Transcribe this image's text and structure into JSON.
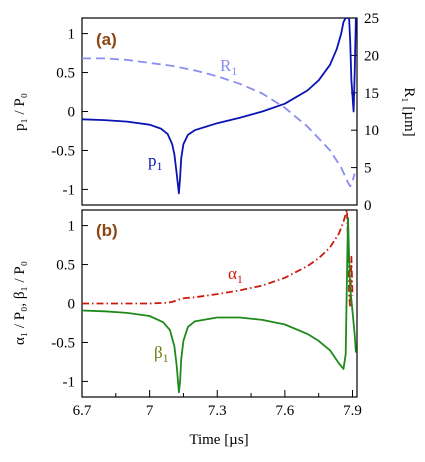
{
  "chart_data": [
    {
      "type": "line",
      "panel_label": "(a)",
      "ylabel_left": "p₁ / P₀",
      "ylabel_right": "R₁ [µm]",
      "ylim_left": [
        -1.2,
        1.2
      ],
      "ylim_right": [
        0,
        25
      ],
      "y_ticks_left": [
        "1",
        "0.5",
        "0",
        "-0.5",
        "-1"
      ],
      "y_tick_values_left": [
        1,
        0.5,
        0,
        -0.5,
        -1
      ],
      "y_ticks_right": [
        "25",
        "20",
        "15",
        "10",
        "5",
        "0"
      ],
      "y_tick_values_right": [
        25,
        20,
        15,
        10,
        5,
        0
      ],
      "series": [
        {
          "name": "p₁",
          "axis": "left",
          "color": "#0a14b4",
          "style": "solid",
          "points": [
            [
              6.7,
              -0.1
            ],
            [
              6.8,
              -0.11
            ],
            [
              6.9,
              -0.13
            ],
            [
              7.0,
              -0.17
            ],
            [
              7.05,
              -0.22
            ],
            [
              7.08,
              -0.29
            ],
            [
              7.1,
              -0.42
            ],
            [
              7.11,
              -0.55
            ],
            [
              7.12,
              -0.8
            ],
            [
              7.13,
              -1.05
            ],
            [
              7.135,
              -0.85
            ],
            [
              7.14,
              -0.6
            ],
            [
              7.15,
              -0.42
            ],
            [
              7.17,
              -0.3
            ],
            [
              7.2,
              -0.24
            ],
            [
              7.3,
              -0.15
            ],
            [
              7.4,
              -0.08
            ],
            [
              7.5,
              0.0
            ],
            [
              7.6,
              0.1
            ],
            [
              7.7,
              0.27
            ],
            [
              7.75,
              0.4
            ],
            [
              7.8,
              0.6
            ],
            [
              7.83,
              0.8
            ],
            [
              7.85,
              1.0
            ],
            [
              7.86,
              1.15
            ],
            [
              7.87,
              1.2
            ],
            [
              7.885,
              1.2
            ],
            [
              7.89,
              0.9
            ],
            [
              7.895,
              0.4
            ],
            [
              7.905,
              0.0
            ],
            [
              7.91,
              0.5
            ],
            [
              7.915,
              1.2
            ]
          ]
        },
        {
          "name": "R₁",
          "axis": "right",
          "color": "#8a8ef0",
          "style": "dashed",
          "points": [
            [
              6.7,
              19.6
            ],
            [
              6.8,
              19.6
            ],
            [
              6.9,
              19.4
            ],
            [
              7.0,
              19.0
            ],
            [
              7.1,
              18.6
            ],
            [
              7.2,
              18.0
            ],
            [
              7.3,
              17.2
            ],
            [
              7.4,
              16.2
            ],
            [
              7.5,
              14.9
            ],
            [
              7.6,
              13.0
            ],
            [
              7.7,
              10.5
            ],
            [
              7.8,
              7.3
            ],
            [
              7.85,
              5.0
            ],
            [
              7.88,
              3.0
            ],
            [
              7.89,
              2.5
            ],
            [
              7.9,
              3.2
            ],
            [
              7.91,
              4.2
            ]
          ]
        }
      ],
      "annotations": [
        "R₁",
        "p₁"
      ]
    },
    {
      "type": "line",
      "panel_label": "(b)",
      "ylabel_left": "α₁ / P₀,  β₁ / P₀",
      "xlabel": "Time  [µs]",
      "ylim": [
        -1.2,
        1.2
      ],
      "xlim": [
        6.7,
        7.92
      ],
      "y_ticks": [
        "1",
        "0.5",
        "0",
        "-0.5",
        "-1"
      ],
      "y_tick_values": [
        1,
        0.5,
        0,
        -0.5,
        -1
      ],
      "x_ticks": [
        "6.7",
        "7",
        "7.3",
        "7.6",
        "7.9"
      ],
      "x_tick_values": [
        6.7,
        7.0,
        7.3,
        7.6,
        7.9
      ],
      "x_minor_ticks": [
        6.85,
        7.15,
        7.45,
        7.75
      ],
      "series": [
        {
          "name": "α₁",
          "color": "#cc1a0d",
          "style": "dashdot",
          "points": [
            [
              6.7,
              0.0
            ],
            [
              6.9,
              0.0
            ],
            [
              7.0,
              0.0
            ],
            [
              7.08,
              0.01
            ],
            [
              7.1,
              0.02
            ],
            [
              7.12,
              0.04
            ],
            [
              7.14,
              0.06
            ],
            [
              7.16,
              0.07
            ],
            [
              7.2,
              0.08
            ],
            [
              7.3,
              0.12
            ],
            [
              7.4,
              0.17
            ],
            [
              7.5,
              0.23
            ],
            [
              7.6,
              0.33
            ],
            [
              7.7,
              0.48
            ],
            [
              7.75,
              0.58
            ],
            [
              7.8,
              0.72
            ],
            [
              7.84,
              0.9
            ],
            [
              7.86,
              1.05
            ],
            [
              7.875,
              1.2
            ],
            [
              7.88,
              0.8
            ],
            [
              7.885,
              0.1
            ],
            [
              7.89,
              -0.05
            ],
            [
              7.895,
              0.6
            ],
            [
              7.9,
              0.1
            ]
          ]
        },
        {
          "name": "β₁",
          "color": "#1f8a1c",
          "style": "solid",
          "points": [
            [
              6.7,
              -0.09
            ],
            [
              6.8,
              -0.1
            ],
            [
              6.9,
              -0.12
            ],
            [
              7.0,
              -0.16
            ],
            [
              7.06,
              -0.24
            ],
            [
              7.09,
              -0.34
            ],
            [
              7.11,
              -0.55
            ],
            [
              7.12,
              -0.8
            ],
            [
              7.13,
              -1.14
            ],
            [
              7.135,
              -1.0
            ],
            [
              7.14,
              -0.72
            ],
            [
              7.15,
              -0.48
            ],
            [
              7.17,
              -0.3
            ],
            [
              7.2,
              -0.23
            ],
            [
              7.3,
              -0.18
            ],
            [
              7.4,
              -0.18
            ],
            [
              7.5,
              -0.21
            ],
            [
              7.6,
              -0.27
            ],
            [
              7.7,
              -0.39
            ],
            [
              7.75,
              -0.48
            ],
            [
              7.8,
              -0.6
            ],
            [
              7.84,
              -0.77
            ],
            [
              7.86,
              -0.84
            ],
            [
              7.87,
              -0.65
            ],
            [
              7.875,
              0.3
            ],
            [
              7.88,
              1.1
            ],
            [
              7.885,
              0.6
            ],
            [
              7.89,
              0.2
            ],
            [
              7.9,
              -0.1
            ],
            [
              7.91,
              -0.4
            ],
            [
              7.915,
              -0.63
            ]
          ]
        }
      ],
      "annotations": [
        "α₁",
        "β₁"
      ]
    }
  ]
}
